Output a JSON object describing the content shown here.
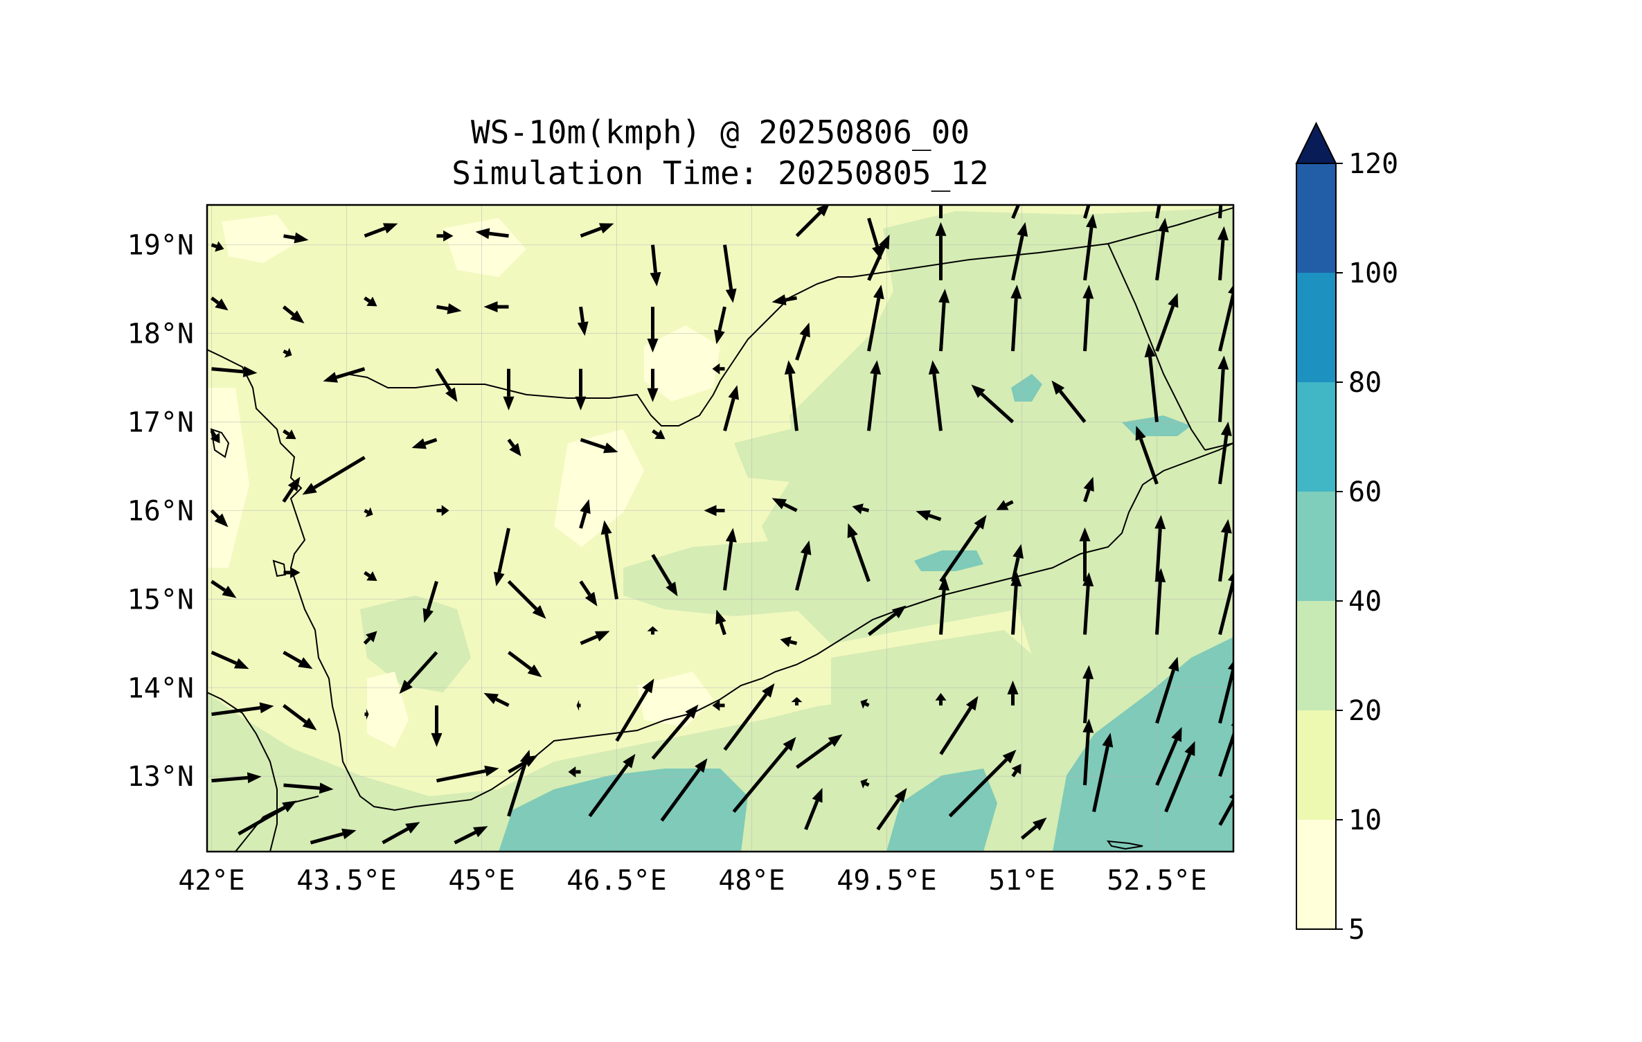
{
  "title": {
    "line1": "WS-10m(kmph) @ 20250806_00",
    "line2": "Simulation Time: 20250805_12"
  },
  "chart_data": {
    "type": "map",
    "variable": "WS-10m(kmph)",
    "lon_range": [
      41.95,
      53.35
    ],
    "lat_range": [
      12.15,
      19.45
    ],
    "lon_ticks": [
      {
        "value": 42.0,
        "label": "42°E"
      },
      {
        "value": 43.5,
        "label": "43.5°E"
      },
      {
        "value": 45.0,
        "label": "45°E"
      },
      {
        "value": 46.5,
        "label": "46.5°E"
      },
      {
        "value": 48.0,
        "label": "48°E"
      },
      {
        "value": 49.5,
        "label": "49.5°E"
      },
      {
        "value": 51.0,
        "label": "51°E"
      },
      {
        "value": 52.5,
        "label": "52.5°E"
      }
    ],
    "lat_ticks": [
      {
        "value": 13,
        "label": "13°N"
      },
      {
        "value": 14,
        "label": "14°N"
      },
      {
        "value": 15,
        "label": "15°N"
      },
      {
        "value": 16,
        "label": "16°N"
      },
      {
        "value": 17,
        "label": "17°N"
      },
      {
        "value": 18,
        "label": "18°N"
      },
      {
        "value": 19,
        "label": "19°N"
      }
    ],
    "colorbar": {
      "levels": [
        5,
        10,
        20,
        40,
        60,
        80,
        100,
        120
      ],
      "labels": [
        "5",
        "10",
        "20",
        "40",
        "60",
        "80",
        "100",
        "120"
      ],
      "colors": [
        "#ffffd9",
        "#edf8b1",
        "#c7e9b4",
        "#7fcdbb",
        "#41b6c4",
        "#1d91c0",
        "#225ea8",
        "#253494"
      ],
      "extend_color": "#081d58",
      "extend": "max"
    },
    "field_colors": {
      "c5": "#ffffd9",
      "c10": "#f1f9bf",
      "c20": "#d5ecb4",
      "c40": "#7fcab8",
      "c60": "#4fb3c2"
    },
    "wind_vectors": [
      {
        "lon": 42.0,
        "lat": 19.0,
        "u": 0.3,
        "v": -0.1
      },
      {
        "lon": 42.8,
        "lat": 19.1,
        "u": 0.6,
        "v": -0.1
      },
      {
        "lon": 43.7,
        "lat": 19.1,
        "u": 0.8,
        "v": 0.3
      },
      {
        "lon": 44.5,
        "lat": 19.1,
        "u": 0.4,
        "v": 0.0
      },
      {
        "lon": 45.3,
        "lat": 19.1,
        "u": -0.8,
        "v": 0.1
      },
      {
        "lon": 46.1,
        "lat": 19.1,
        "u": 0.8,
        "v": 0.3
      },
      {
        "lon": 46.9,
        "lat": 19.0,
        "u": 0.1,
        "v": -1.0
      },
      {
        "lon": 47.7,
        "lat": 19.0,
        "u": 0.2,
        "v": -1.4
      },
      {
        "lon": 48.5,
        "lat": 19.1,
        "u": 0.8,
        "v": 0.8
      },
      {
        "lon": 49.3,
        "lat": 19.3,
        "u": 0.3,
        "v": -1.0
      },
      {
        "lon": 50.1,
        "lat": 19.3,
        "u": 0.0,
        "v": 1.2
      },
      {
        "lon": 50.9,
        "lat": 19.3,
        "u": 0.5,
        "v": 1.2
      },
      {
        "lon": 51.7,
        "lat": 19.3,
        "u": 0.4,
        "v": 1.4
      },
      {
        "lon": 52.5,
        "lat": 19.3,
        "u": 0.3,
        "v": 1.6
      },
      {
        "lon": 53.2,
        "lat": 19.3,
        "u": 0.1,
        "v": 1.5
      },
      {
        "lon": 42.0,
        "lat": 18.4,
        "u": 0.4,
        "v": -0.3
      },
      {
        "lon": 42.8,
        "lat": 18.3,
        "u": 0.5,
        "v": -0.4
      },
      {
        "lon": 43.7,
        "lat": 18.4,
        "u": 0.3,
        "v": -0.2
      },
      {
        "lon": 44.5,
        "lat": 18.3,
        "u": 0.6,
        "v": -0.1
      },
      {
        "lon": 45.3,
        "lat": 18.3,
        "u": -0.6,
        "v": 0.0
      },
      {
        "lon": 46.1,
        "lat": 18.3,
        "u": 0.1,
        "v": -0.7
      },
      {
        "lon": 46.9,
        "lat": 18.3,
        "u": 0.0,
        "v": -1.1
      },
      {
        "lon": 47.7,
        "lat": 18.3,
        "u": -0.2,
        "v": -0.9
      },
      {
        "lon": 48.5,
        "lat": 18.4,
        "u": -0.6,
        "v": -0.1
      },
      {
        "lon": 49.3,
        "lat": 18.6,
        "u": 0.5,
        "v": 1.1
      },
      {
        "lon": 50.1,
        "lat": 18.6,
        "u": 0.0,
        "v": 1.4
      },
      {
        "lon": 50.9,
        "lat": 18.6,
        "u": 0.3,
        "v": 1.4
      },
      {
        "lon": 51.7,
        "lat": 18.6,
        "u": 0.2,
        "v": 1.6
      },
      {
        "lon": 52.5,
        "lat": 18.6,
        "u": 0.2,
        "v": 1.5
      },
      {
        "lon": 53.2,
        "lat": 18.6,
        "u": 0.1,
        "v": 1.3
      },
      {
        "lon": 42.0,
        "lat": 17.6,
        "u": 1.1,
        "v": -0.1
      },
      {
        "lon": 42.8,
        "lat": 17.8,
        "u": 0.2,
        "v": -0.1
      },
      {
        "lon": 43.7,
        "lat": 17.6,
        "u": -1.0,
        "v": -0.3
      },
      {
        "lon": 44.5,
        "lat": 17.6,
        "u": 0.5,
        "v": -0.8
      },
      {
        "lon": 45.3,
        "lat": 17.6,
        "u": 0.0,
        "v": -1.0
      },
      {
        "lon": 46.1,
        "lat": 17.6,
        "u": 0.0,
        "v": -1.0
      },
      {
        "lon": 46.9,
        "lat": 17.6,
        "u": 0.0,
        "v": -0.8
      },
      {
        "lon": 47.7,
        "lat": 17.6,
        "u": -0.3,
        "v": 0.0
      },
      {
        "lon": 48.5,
        "lat": 17.7,
        "u": 0.3,
        "v": 0.9
      },
      {
        "lon": 49.3,
        "lat": 17.8,
        "u": 0.3,
        "v": 1.6
      },
      {
        "lon": 50.1,
        "lat": 17.8,
        "u": 0.1,
        "v": 1.5
      },
      {
        "lon": 50.9,
        "lat": 17.8,
        "u": 0.1,
        "v": 1.6
      },
      {
        "lon": 51.7,
        "lat": 17.8,
        "u": 0.1,
        "v": 1.6
      },
      {
        "lon": 52.5,
        "lat": 17.8,
        "u": 0.5,
        "v": 1.4
      },
      {
        "lon": 53.2,
        "lat": 17.8,
        "u": 0.4,
        "v": 1.7
      },
      {
        "lon": 42.0,
        "lat": 16.9,
        "u": 0.2,
        "v": -0.3
      },
      {
        "lon": 42.8,
        "lat": 16.9,
        "u": 0.3,
        "v": -0.2
      },
      {
        "lon": 43.7,
        "lat": 16.6,
        "u": -1.5,
        "v": -0.9
      },
      {
        "lon": 44.5,
        "lat": 16.8,
        "u": -0.6,
        "v": -0.2
      },
      {
        "lon": 45.3,
        "lat": 16.8,
        "u": 0.3,
        "v": -0.4
      },
      {
        "lon": 46.1,
        "lat": 16.8,
        "u": 0.9,
        "v": -0.3
      },
      {
        "lon": 46.9,
        "lat": 16.9,
        "u": 0.3,
        "v": -0.2
      },
      {
        "lon": 47.7,
        "lat": 16.9,
        "u": 0.3,
        "v": 1.1
      },
      {
        "lon": 48.5,
        "lat": 16.9,
        "u": -0.2,
        "v": 1.7
      },
      {
        "lon": 49.3,
        "lat": 16.9,
        "u": 0.2,
        "v": 1.7
      },
      {
        "lon": 50.1,
        "lat": 16.9,
        "u": -0.2,
        "v": 1.7
      },
      {
        "lon": 50.9,
        "lat": 17.0,
        "u": -1.0,
        "v": 0.9
      },
      {
        "lon": 51.7,
        "lat": 17.0,
        "u": -0.8,
        "v": 1.0
      },
      {
        "lon": 52.5,
        "lat": 17.0,
        "u": -0.2,
        "v": 1.9
      },
      {
        "lon": 53.2,
        "lat": 17.0,
        "u": 0.1,
        "v": 1.6
      },
      {
        "lon": 42.0,
        "lat": 16.0,
        "u": 0.4,
        "v": -0.4
      },
      {
        "lon": 42.8,
        "lat": 16.1,
        "u": 0.4,
        "v": 0.6
      },
      {
        "lon": 43.7,
        "lat": 16.0,
        "u": 0.2,
        "v": -0.1
      },
      {
        "lon": 44.5,
        "lat": 16.0,
        "u": 0.3,
        "v": 0.0
      },
      {
        "lon": 45.3,
        "lat": 15.8,
        "u": -0.3,
        "v": -1.4
      },
      {
        "lon": 46.1,
        "lat": 15.8,
        "u": 0.2,
        "v": 0.7
      },
      {
        "lon": 46.9,
        "lat": 15.5,
        "u": 0.6,
        "v": -1.0
      },
      {
        "lon": 47.7,
        "lat": 16.0,
        "u": -0.5,
        "v": 0.0
      },
      {
        "lon": 48.5,
        "lat": 16.0,
        "u": -0.6,
        "v": 0.3
      },
      {
        "lon": 49.3,
        "lat": 16.0,
        "u": -0.4,
        "v": 0.1
      },
      {
        "lon": 50.1,
        "lat": 15.9,
        "u": -0.6,
        "v": 0.2
      },
      {
        "lon": 50.9,
        "lat": 16.1,
        "u": -0.4,
        "v": -0.2
      },
      {
        "lon": 51.7,
        "lat": 16.1,
        "u": 0.2,
        "v": 0.6
      },
      {
        "lon": 52.5,
        "lat": 16.3,
        "u": -0.5,
        "v": 1.4
      },
      {
        "lon": 53.2,
        "lat": 16.3,
        "u": 0.2,
        "v": 1.5
      },
      {
        "lon": 42.0,
        "lat": 15.2,
        "u": 0.6,
        "v": -0.4
      },
      {
        "lon": 42.8,
        "lat": 15.3,
        "u": 0.4,
        "v": 0.0
      },
      {
        "lon": 43.7,
        "lat": 15.3,
        "u": 0.3,
        "v": -0.2
      },
      {
        "lon": 44.5,
        "lat": 15.2,
        "u": -0.3,
        "v": -1.0
      },
      {
        "lon": 45.3,
        "lat": 15.2,
        "u": 0.9,
        "v": -0.9
      },
      {
        "lon": 46.1,
        "lat": 15.2,
        "u": 0.4,
        "v": -0.6
      },
      {
        "lon": 46.5,
        "lat": 15.0,
        "u": -0.3,
        "v": 1.9
      },
      {
        "lon": 47.7,
        "lat": 15.1,
        "u": 0.2,
        "v": 1.5
      },
      {
        "lon": 48.5,
        "lat": 15.1,
        "u": 0.3,
        "v": 1.2
      },
      {
        "lon": 49.3,
        "lat": 15.2,
        "u": -0.5,
        "v": 1.4
      },
      {
        "lon": 50.1,
        "lat": 15.2,
        "u": 1.1,
        "v": 1.6
      },
      {
        "lon": 50.9,
        "lat": 15.2,
        "u": 0.2,
        "v": 0.9
      },
      {
        "lon": 51.7,
        "lat": 15.2,
        "u": 0.0,
        "v": 1.3
      },
      {
        "lon": 52.5,
        "lat": 15.2,
        "u": 0.1,
        "v": 1.6
      },
      {
        "lon": 53.2,
        "lat": 15.2,
        "u": 0.2,
        "v": 1.5
      },
      {
        "lon": 42.0,
        "lat": 14.4,
        "u": 0.9,
        "v": -0.4
      },
      {
        "lon": 42.8,
        "lat": 14.4,
        "u": 0.7,
        "v": -0.4
      },
      {
        "lon": 43.7,
        "lat": 14.5,
        "u": 0.3,
        "v": 0.3
      },
      {
        "lon": 44.5,
        "lat": 14.4,
        "u": -0.9,
        "v": -1.0
      },
      {
        "lon": 45.3,
        "lat": 14.4,
        "u": 0.8,
        "v": -0.6
      },
      {
        "lon": 46.1,
        "lat": 14.5,
        "u": 0.7,
        "v": 0.3
      },
      {
        "lon": 46.9,
        "lat": 14.6,
        "u": 0.0,
        "v": 0.2
      },
      {
        "lon": 47.7,
        "lat": 14.6,
        "u": -0.2,
        "v": 0.6
      },
      {
        "lon": 48.5,
        "lat": 14.5,
        "u": -0.4,
        "v": 0.1
      },
      {
        "lon": 49.3,
        "lat": 14.6,
        "u": 0.9,
        "v": 0.7
      },
      {
        "lon": 50.1,
        "lat": 14.6,
        "u": 0.1,
        "v": 1.4
      },
      {
        "lon": 50.9,
        "lat": 14.6,
        "u": 0.1,
        "v": 1.5
      },
      {
        "lon": 51.7,
        "lat": 14.6,
        "u": 0.1,
        "v": 1.5
      },
      {
        "lon": 52.5,
        "lat": 14.6,
        "u": 0.1,
        "v": 1.6
      },
      {
        "lon": 53.2,
        "lat": 14.6,
        "u": 0.4,
        "v": 1.6
      },
      {
        "lon": 42.0,
        "lat": 13.7,
        "u": 1.5,
        "v": 0.2
      },
      {
        "lon": 42.8,
        "lat": 13.8,
        "u": 0.8,
        "v": -0.6
      },
      {
        "lon": 43.7,
        "lat": 13.7,
        "u": 0.1,
        "v": 0.0
      },
      {
        "lon": 44.5,
        "lat": 13.8,
        "u": 0.0,
        "v": -1.0
      },
      {
        "lon": 45.3,
        "lat": 13.8,
        "u": -0.6,
        "v": 0.3
      },
      {
        "lon": 46.1,
        "lat": 13.8,
        "u": -0.1,
        "v": 0.0
      },
      {
        "lon": 46.5,
        "lat": 13.4,
        "u": 0.9,
        "v": 1.5
      },
      {
        "lon": 47.7,
        "lat": 13.8,
        "u": -0.3,
        "v": 0.0
      },
      {
        "lon": 48.5,
        "lat": 13.8,
        "u": 0.0,
        "v": 0.2
      },
      {
        "lon": 49.3,
        "lat": 13.8,
        "u": -0.2,
        "v": 0.1
      },
      {
        "lon": 50.1,
        "lat": 13.8,
        "u": 0.0,
        "v": 0.3
      },
      {
        "lon": 50.9,
        "lat": 13.8,
        "u": 0.0,
        "v": 0.6
      },
      {
        "lon": 51.7,
        "lat": 13.6,
        "u": 0.1,
        "v": 1.4
      },
      {
        "lon": 52.5,
        "lat": 13.6,
        "u": 0.5,
        "v": 1.6
      },
      {
        "lon": 53.2,
        "lat": 13.6,
        "u": 0.4,
        "v": 1.6
      },
      {
        "lon": 42.0,
        "lat": 12.95,
        "u": 1.2,
        "v": 0.1
      },
      {
        "lon": 42.8,
        "lat": 12.9,
        "u": 1.2,
        "v": -0.1
      },
      {
        "lon": 44.5,
        "lat": 12.95,
        "u": 1.5,
        "v": 0.3
      },
      {
        "lon": 45.3,
        "lat": 13.05,
        "u": 0.7,
        "v": 0.4
      },
      {
        "lon": 46.1,
        "lat": 13.05,
        "u": -0.3,
        "v": 0.0
      },
      {
        "lon": 46.9,
        "lat": 13.2,
        "u": 1.1,
        "v": 1.3
      },
      {
        "lon": 47.7,
        "lat": 13.3,
        "u": 1.2,
        "v": 1.6
      },
      {
        "lon": 48.5,
        "lat": 13.1,
        "u": 1.1,
        "v": 0.8
      },
      {
        "lon": 49.3,
        "lat": 12.9,
        "u": -0.2,
        "v": 0.1
      },
      {
        "lon": 50.1,
        "lat": 13.25,
        "u": 0.9,
        "v": 1.4
      },
      {
        "lon": 50.9,
        "lat": 13.0,
        "u": 0.2,
        "v": 0.3
      },
      {
        "lon": 51.7,
        "lat": 12.9,
        "u": 0.1,
        "v": 1.6
      },
      {
        "lon": 52.5,
        "lat": 12.9,
        "u": 0.6,
        "v": 1.4
      },
      {
        "lon": 53.2,
        "lat": 13.0,
        "u": 0.5,
        "v": 1.5
      },
      {
        "lon": 42.3,
        "lat": 12.35,
        "u": 1.4,
        "v": 0.8
      },
      {
        "lon": 43.1,
        "lat": 12.25,
        "u": 1.1,
        "v": 0.3
      },
      {
        "lon": 43.9,
        "lat": 12.25,
        "u": 0.9,
        "v": 0.5
      },
      {
        "lon": 44.7,
        "lat": 12.25,
        "u": 0.8,
        "v": 0.4
      },
      {
        "lon": 45.3,
        "lat": 12.55,
        "u": 0.5,
        "v": 1.6
      },
      {
        "lon": 46.2,
        "lat": 12.55,
        "u": 1.1,
        "v": 1.5
      },
      {
        "lon": 47.0,
        "lat": 12.5,
        "u": 1.1,
        "v": 1.5
      },
      {
        "lon": 47.8,
        "lat": 12.6,
        "u": 1.5,
        "v": 1.8
      },
      {
        "lon": 48.6,
        "lat": 12.4,
        "u": 0.4,
        "v": 1.0
      },
      {
        "lon": 49.4,
        "lat": 12.4,
        "u": 0.7,
        "v": 1.0
      },
      {
        "lon": 50.2,
        "lat": 12.55,
        "u": 1.6,
        "v": 1.6
      },
      {
        "lon": 51.0,
        "lat": 12.3,
        "u": 0.6,
        "v": 0.5
      },
      {
        "lon": 51.8,
        "lat": 12.6,
        "u": 0.4,
        "v": 1.9
      },
      {
        "lon": 52.6,
        "lat": 12.6,
        "u": 0.7,
        "v": 1.7
      },
      {
        "lon": 53.2,
        "lat": 12.45,
        "u": 0.5,
        "v": 0.9
      }
    ]
  }
}
